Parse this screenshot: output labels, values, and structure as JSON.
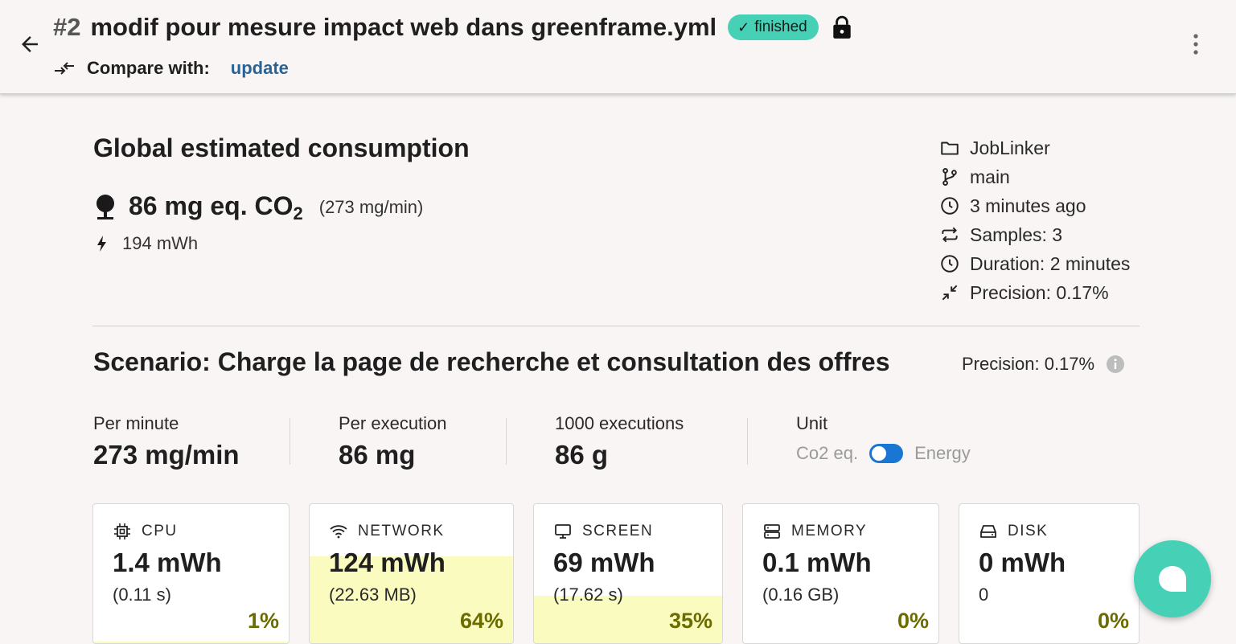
{
  "header": {
    "run_number": "#2",
    "title": "modif pour mesure impact web dans greenframe.yml",
    "status": "finished",
    "compare_label": "Compare with:",
    "compare_link": "update"
  },
  "global": {
    "title": "Global estimated consumption",
    "co2_value": "86 mg eq. CO",
    "co2_subscript": "2",
    "co2_rate": "(273 mg/min)",
    "energy": "194 mWh"
  },
  "meta": {
    "project": "JobLinker",
    "branch": "main",
    "time_ago": "3 minutes ago",
    "samples": "Samples: 3",
    "duration": "Duration: 2 minutes",
    "precision": "Precision: 0.17%"
  },
  "scenario": {
    "title": "Scenario: Charge la page de recherche et consultation des offres",
    "precision": "Precision: 0.17%",
    "stats": [
      {
        "label": "Per minute",
        "value": "273 mg/min"
      },
      {
        "label": "Per execution",
        "value": "86 mg"
      },
      {
        "label": "1000 executions",
        "value": "86 g"
      }
    ],
    "unit": {
      "label": "Unit",
      "option_left": "Co2 eq.",
      "option_right": "Energy",
      "toggle_state": "Energy"
    }
  },
  "cards": [
    {
      "name": "CPU",
      "icon": "cpu-icon",
      "value": "1.4 mWh",
      "sub": "(0.11 s)",
      "percent": "1%",
      "share": 0.01
    },
    {
      "name": "NETWORK",
      "icon": "wifi-icon",
      "value": "124 mWh",
      "sub": "(22.63 MB)",
      "percent": "64%",
      "share": 0.64
    },
    {
      "name": "SCREEN",
      "icon": "monitor-icon",
      "value": "69 mWh",
      "sub": "(17.62 s)",
      "percent": "35%",
      "share": 0.35
    },
    {
      "name": "MEMORY",
      "icon": "memory-icon",
      "value": "0.1 mWh",
      "sub": "(0.16 GB)",
      "percent": "0%",
      "share": 0
    },
    {
      "name": "DISK",
      "icon": "disk-icon",
      "value": "0 mWh",
      "sub": "0",
      "percent": "0%",
      "share": 0
    }
  ],
  "colors": {
    "accent": "#46d1b6",
    "link": "#2a6393",
    "fill": "#fafcbf",
    "percent": "#6b6b00",
    "toggle": "#1976d2"
  }
}
